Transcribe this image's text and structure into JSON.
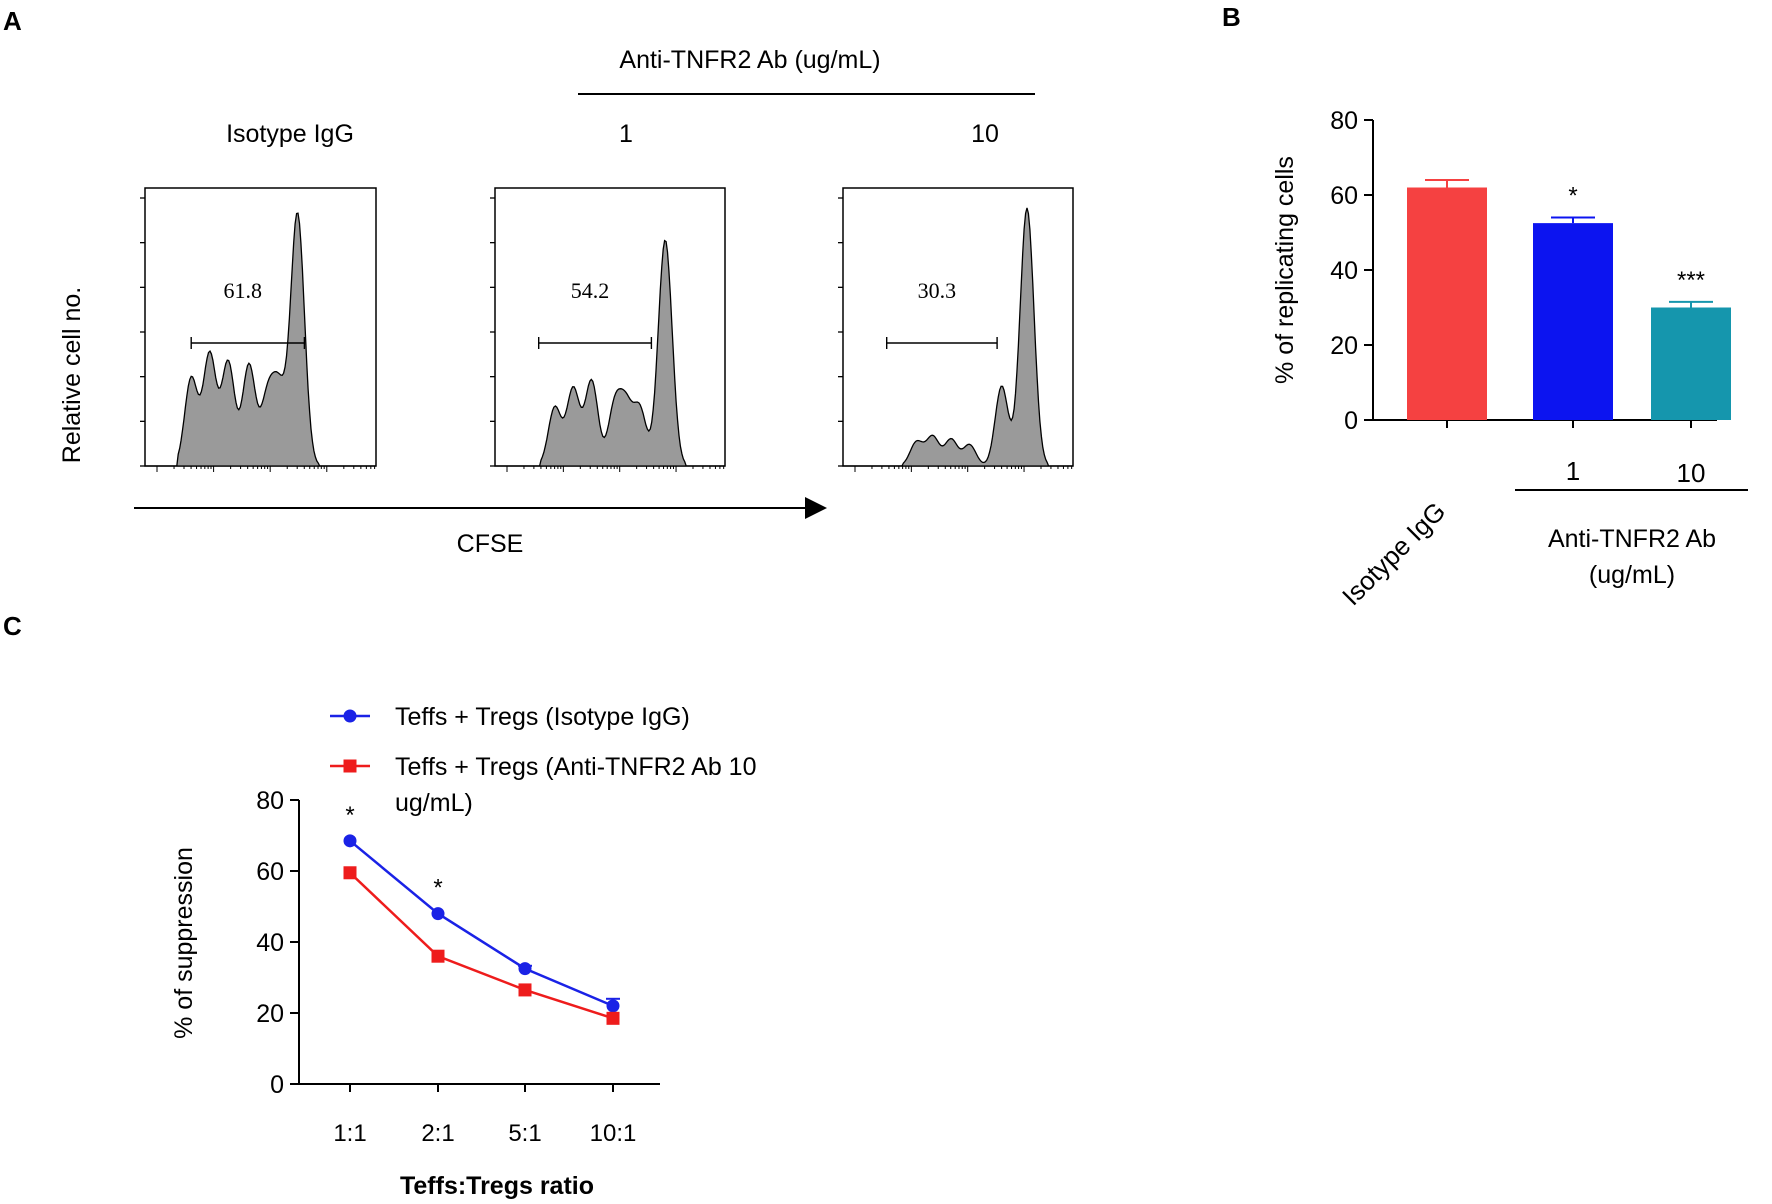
{
  "panel_labels": {
    "a": "A",
    "b": "B",
    "c": "C"
  },
  "panel_a": {
    "header": "Anti-TNFR2 Ab (ug/mL)",
    "x_axis_label": "CFSE",
    "y_axis_label": "Relative cell no."
  },
  "colors": {
    "red": "#f54141",
    "blue": "#0c14f0",
    "teal": "#1596ad",
    "histogram_fill": "#9a9a9a",
    "line_blue": "#1a22e6",
    "line_red": "#ee1c1c"
  },
  "chart_data": [
    {
      "type": "histogram",
      "panel": "A",
      "description_labels": "flow cytometry CFSE dilution histograms",
      "histograms": [
        {
          "condition": "Isotype IgG",
          "gate_value": "61.8",
          "peaks": [
            {
              "pos": 0.2,
              "h": 0.33
            },
            {
              "pos": 0.28,
              "h": 0.42
            },
            {
              "pos": 0.36,
              "h": 0.39
            },
            {
              "pos": 0.45,
              "h": 0.38
            },
            {
              "pos": 0.53,
              "h": 0.25
            },
            {
              "pos": 0.58,
              "h": 0.27
            },
            {
              "pos": 0.66,
              "h": 0.95
            }
          ]
        },
        {
          "condition": "1",
          "gate_value": "54.2",
          "peaks": [
            {
              "pos": 0.26,
              "h": 0.22
            },
            {
              "pos": 0.34,
              "h": 0.29
            },
            {
              "pos": 0.42,
              "h": 0.32
            },
            {
              "pos": 0.52,
              "h": 0.22
            },
            {
              "pos": 0.57,
              "h": 0.21
            },
            {
              "pos": 0.63,
              "h": 0.21
            },
            {
              "pos": 0.74,
              "h": 0.85
            }
          ]
        },
        {
          "condition": "10",
          "gate_value": "30.3",
          "peaks": [
            {
              "pos": 0.32,
              "h": 0.09
            },
            {
              "pos": 0.39,
              "h": 0.11
            },
            {
              "pos": 0.47,
              "h": 0.1
            },
            {
              "pos": 0.55,
              "h": 0.08
            },
            {
              "pos": 0.69,
              "h": 0.3
            },
            {
              "pos": 0.8,
              "h": 0.97
            }
          ]
        }
      ]
    },
    {
      "type": "bar",
      "panel": "B",
      "categories": [
        "Isotype IgG",
        "1",
        "10"
      ],
      "values": [
        62,
        52.5,
        30
      ],
      "errors": [
        2,
        1.5,
        1.5
      ],
      "significance": [
        "",
        "*",
        "***"
      ],
      "ylabel": "% of replicating cells",
      "ylim": [
        0,
        80
      ],
      "yticks": [
        0,
        20,
        40,
        60,
        80
      ],
      "group_label": "Anti-TNFR2 Ab (ug/mL)"
    },
    {
      "type": "line",
      "panel": "C",
      "categories": [
        "1:1",
        "2:1",
        "5:1",
        "10:1"
      ],
      "series": [
        {
          "name": "Teffs + Tregs (Isotype IgG)",
          "values": [
            68.5,
            48,
            32.5,
            22
          ],
          "errors": [
            0.5,
            0.5,
            0.8,
            2
          ]
        },
        {
          "name": "Teffs + Tregs (Anti-TNFR2 Ab 10 ug/mL)",
          "values": [
            59.5,
            36,
            26.5,
            18.5
          ],
          "errors": [
            0.5,
            0.5,
            0.5,
            0.5
          ]
        }
      ],
      "significance": [
        "*",
        "*",
        "",
        ""
      ],
      "ylabel": "% of suppression",
      "xlabel": "Teffs:Tregs ratio",
      "ylim": [
        0,
        80
      ],
      "yticks": [
        0,
        20,
        40,
        60,
        80
      ]
    }
  ]
}
